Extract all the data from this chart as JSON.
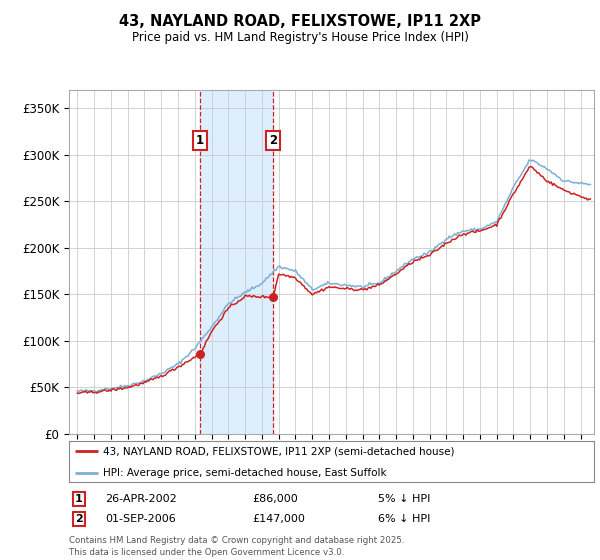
{
  "title": "43, NAYLAND ROAD, FELIXSTOWE, IP11 2XP",
  "subtitle": "Price paid vs. HM Land Registry's House Price Index (HPI)",
  "ylabel_ticks": [
    "£0",
    "£50K",
    "£100K",
    "£150K",
    "£200K",
    "£250K",
    "£300K",
    "£350K"
  ],
  "ytick_values": [
    0,
    50000,
    100000,
    150000,
    200000,
    250000,
    300000,
    350000
  ],
  "ylim": [
    0,
    370000
  ],
  "xlim_start": 1994.5,
  "xlim_end": 2025.8,
  "sale1_year": 2002.32,
  "sale1_price": 86000,
  "sale1_label": "1",
  "sale1_date": "26-APR-2002",
  "sale1_price_str": "£86,000",
  "sale1_note": "5% ↓ HPI",
  "sale2_year": 2006.67,
  "sale2_price": 147000,
  "sale2_label": "2",
  "sale2_date": "01-SEP-2006",
  "sale2_price_str": "£147,000",
  "sale2_note": "6% ↓ HPI",
  "hpi_color": "#7ab0d4",
  "price_color": "#cc2222",
  "shade_color": "#ddeeff",
  "legend_line1": "43, NAYLAND ROAD, FELIXSTOWE, IP11 2XP (semi-detached house)",
  "legend_line2": "HPI: Average price, semi-detached house, East Suffolk",
  "footnote1": "Contains HM Land Registry data © Crown copyright and database right 2025.",
  "footnote2": "This data is licensed under the Open Government Licence v3.0.",
  "background_color": "#ffffff",
  "grid_color": "#cccccc"
}
